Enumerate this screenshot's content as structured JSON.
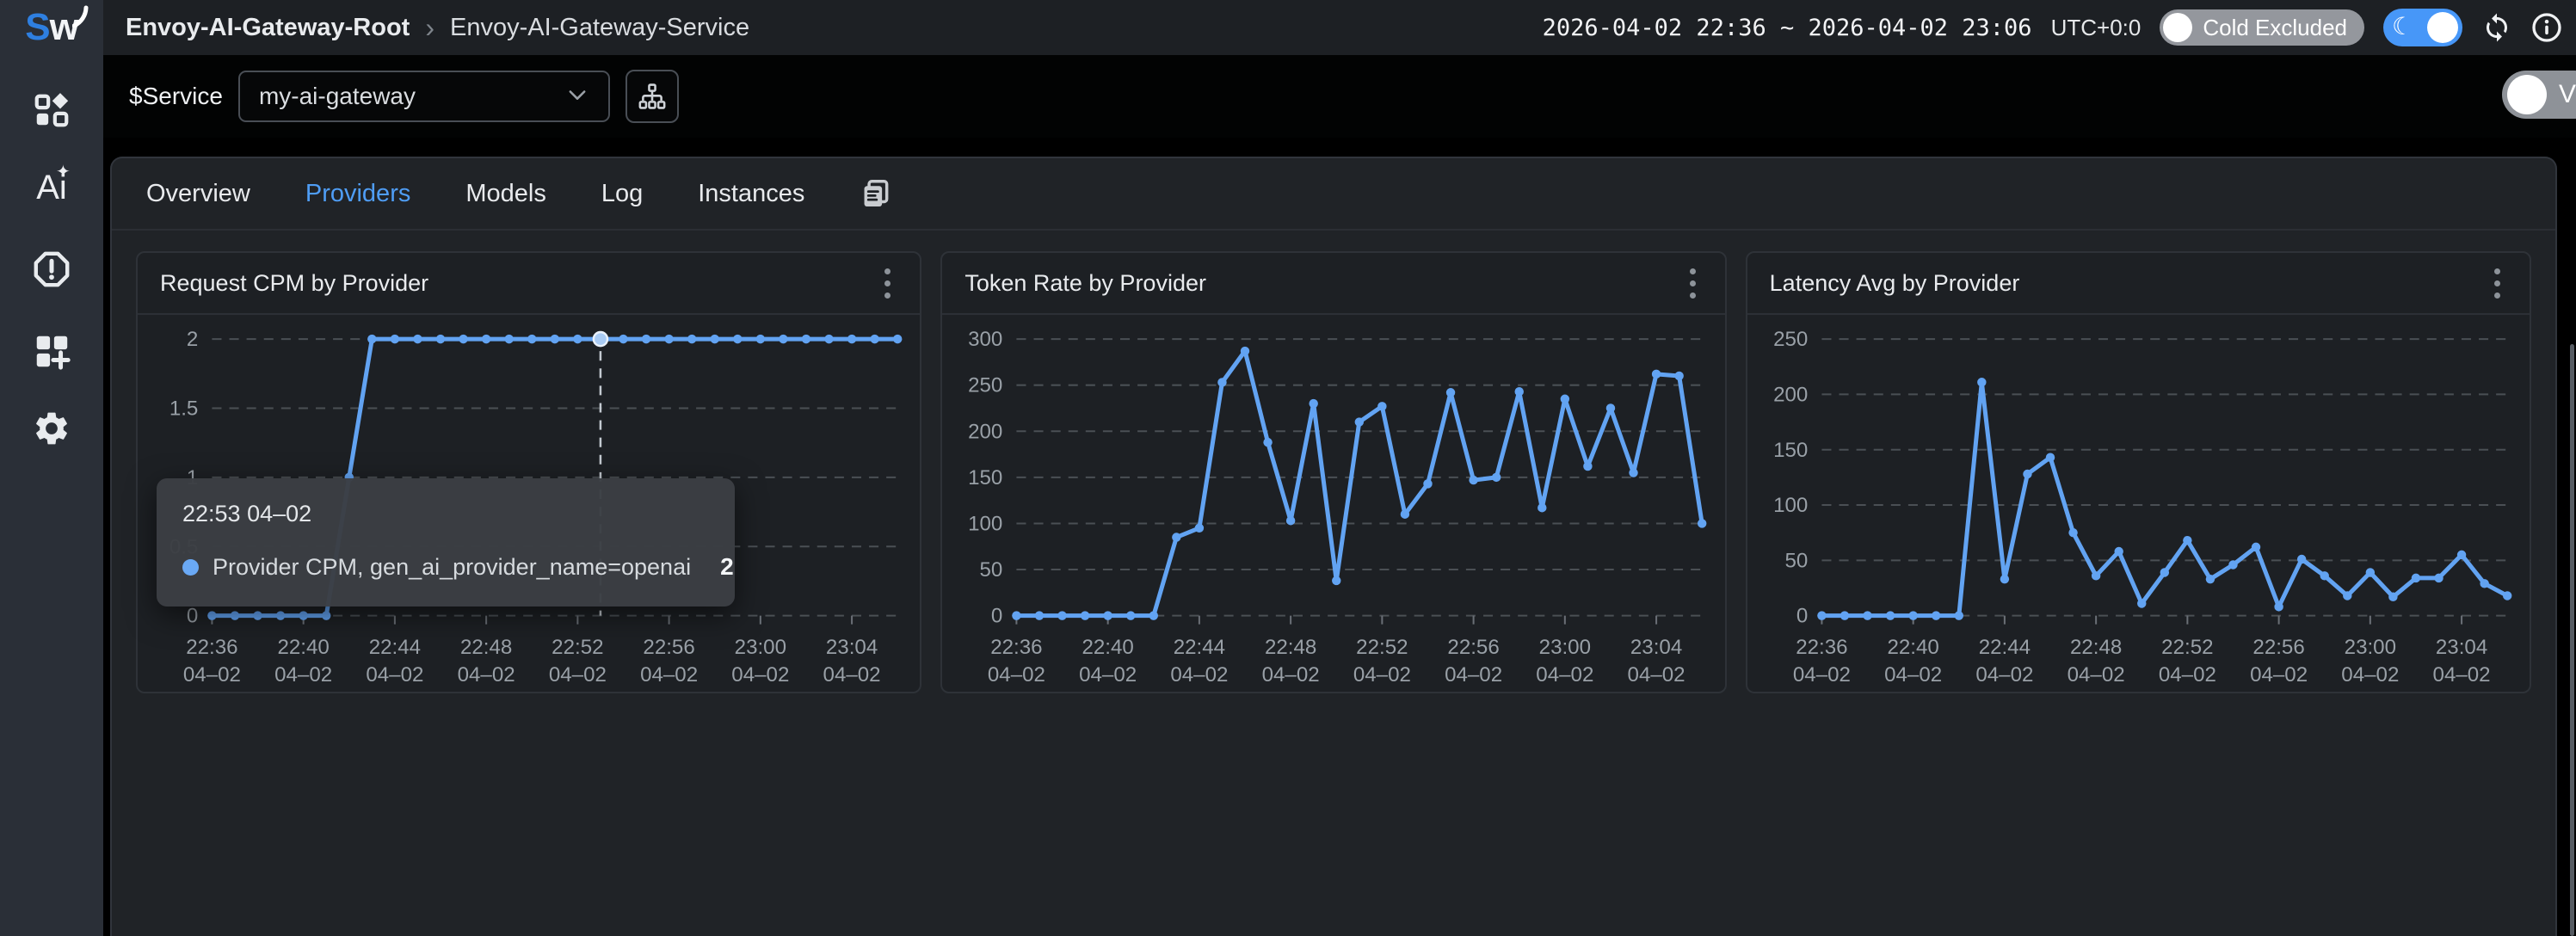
{
  "header": {
    "logo": "Sw",
    "breadcrumb": {
      "root": "Envoy-AI-Gateway-Root",
      "separator": "›",
      "current": "Envoy-AI-Gateway-Service"
    },
    "time_range": "2026-04-02 22:36 ~ 2026-04-02 23:06",
    "timezone": "UTC+0:0",
    "cold_toggle_label": "Cold Excluded",
    "moon_glyph": "☾"
  },
  "sidebar": {
    "icons": [
      "apps-grid-icon",
      "ai-assistant-icon",
      "alert-hexagon-icon",
      "add-widget-icon",
      "settings-gear-icon"
    ],
    "ai_glyph": {
      "a": "A",
      "spark": "✦",
      "i": "i"
    }
  },
  "service_bar": {
    "label": "$Service",
    "selected_value": "my-ai-gateway",
    "variables_toggle_label": "V"
  },
  "tabs": {
    "items": [
      "Overview",
      "Providers",
      "Models",
      "Log",
      "Instances"
    ],
    "active": "Providers"
  },
  "tooltip": {
    "time": "22:53 04–02",
    "series": "Provider CPM, gen_ai_provider_name=openai",
    "value": "2"
  },
  "colors": {
    "accent_blue": "#4f9df5",
    "line_blue": "#62a3f2",
    "toggle_blue": "#4797f8",
    "panel_bg": "#1d2024",
    "page_bg": "#000000"
  },
  "chart_data": [
    {
      "type": "line",
      "title": "Request CPM by Provider",
      "series_name": "Provider CPM, gen_ai_provider_name=openai",
      "x": [
        "22:36",
        "22:37",
        "22:38",
        "22:39",
        "22:40",
        "22:41",
        "22:42",
        "22:43",
        "22:44",
        "22:45",
        "22:46",
        "22:47",
        "22:48",
        "22:49",
        "22:50",
        "22:51",
        "22:52",
        "22:53",
        "22:54",
        "22:55",
        "22:56",
        "22:57",
        "22:58",
        "22:59",
        "23:00",
        "23:01",
        "23:02",
        "23:03",
        "23:04",
        "23:05",
        "23:06"
      ],
      "values": [
        0,
        0,
        0,
        0,
        0,
        0,
        1,
        2,
        2,
        2,
        2,
        2,
        2,
        2,
        2,
        2,
        2,
        2,
        2,
        2,
        2,
        2,
        2,
        2,
        2,
        2,
        2,
        2,
        2,
        2,
        2
      ],
      "ylim": [
        0,
        2
      ],
      "yticks": [
        "0",
        "0.5",
        "1",
        "1.5",
        "2"
      ],
      "x_tick_minutes": [
        0,
        4,
        8,
        12,
        16,
        20,
        24,
        28
      ],
      "x_tick_labels": [
        "22:36",
        "22:40",
        "22:44",
        "22:48",
        "22:52",
        "22:56",
        "23:00",
        "23:04"
      ],
      "x_sub_label": "04–02",
      "grid": "dashed",
      "legend": "none",
      "crosshair_minute": 17
    },
    {
      "type": "line",
      "title": "Token Rate by Provider",
      "x": [
        "22:36",
        "22:37",
        "22:38",
        "22:39",
        "22:40",
        "22:41",
        "22:42",
        "22:43",
        "22:44",
        "22:45",
        "22:46",
        "22:47",
        "22:48",
        "22:49",
        "22:50",
        "22:51",
        "22:52",
        "22:53",
        "22:54",
        "22:55",
        "22:56",
        "22:57",
        "22:58",
        "22:59",
        "23:00",
        "23:01",
        "23:02",
        "23:03",
        "23:04",
        "23:05",
        "23:06"
      ],
      "values": [
        0,
        0,
        0,
        0,
        0,
        0,
        0,
        85,
        95,
        253,
        287,
        188,
        103,
        230,
        38,
        210,
        227,
        110,
        143,
        242,
        147,
        150,
        243,
        117,
        235,
        162,
        225,
        155,
        262,
        260,
        100
      ],
      "ylim": [
        0,
        300
      ],
      "yticks": [
        "0",
        "50",
        "100",
        "150",
        "200",
        "250",
        "300"
      ],
      "x_tick_minutes": [
        0,
        4,
        8,
        12,
        16,
        20,
        24,
        28
      ],
      "x_tick_labels": [
        "22:36",
        "22:40",
        "22:44",
        "22:48",
        "22:52",
        "22:56",
        "23:00",
        "23:04"
      ],
      "x_sub_label": "04–02",
      "grid": "dashed",
      "legend": "none",
      "crosshair_minute": null
    },
    {
      "type": "line",
      "title": "Latency Avg by Provider",
      "x": [
        "22:36",
        "22:37",
        "22:38",
        "22:39",
        "22:40",
        "22:41",
        "22:42",
        "22:43",
        "22:44",
        "22:45",
        "22:46",
        "22:47",
        "22:48",
        "22:49",
        "22:50",
        "22:51",
        "22:52",
        "22:53",
        "22:54",
        "22:55",
        "22:56",
        "22:57",
        "22:58",
        "22:59",
        "23:00",
        "23:01",
        "23:02",
        "23:03",
        "23:04",
        "23:05",
        "23:06"
      ],
      "values": [
        0,
        0,
        0,
        0,
        0,
        0,
        0,
        211,
        33,
        128,
        143,
        75,
        36,
        58,
        11,
        39,
        68,
        33,
        46,
        62,
        8,
        51,
        36,
        18,
        39,
        17,
        34,
        34,
        55,
        29,
        18
      ],
      "ylim": [
        0,
        250
      ],
      "yticks": [
        "0",
        "50",
        "100",
        "150",
        "200",
        "250"
      ],
      "x_tick_minutes": [
        0,
        4,
        8,
        12,
        16,
        20,
        24,
        28
      ],
      "x_tick_labels": [
        "22:36",
        "22:40",
        "22:44",
        "22:48",
        "22:52",
        "22:56",
        "23:00",
        "23:04"
      ],
      "x_sub_label": "04–02",
      "grid": "dashed",
      "legend": "none",
      "crosshair_minute": null
    }
  ]
}
